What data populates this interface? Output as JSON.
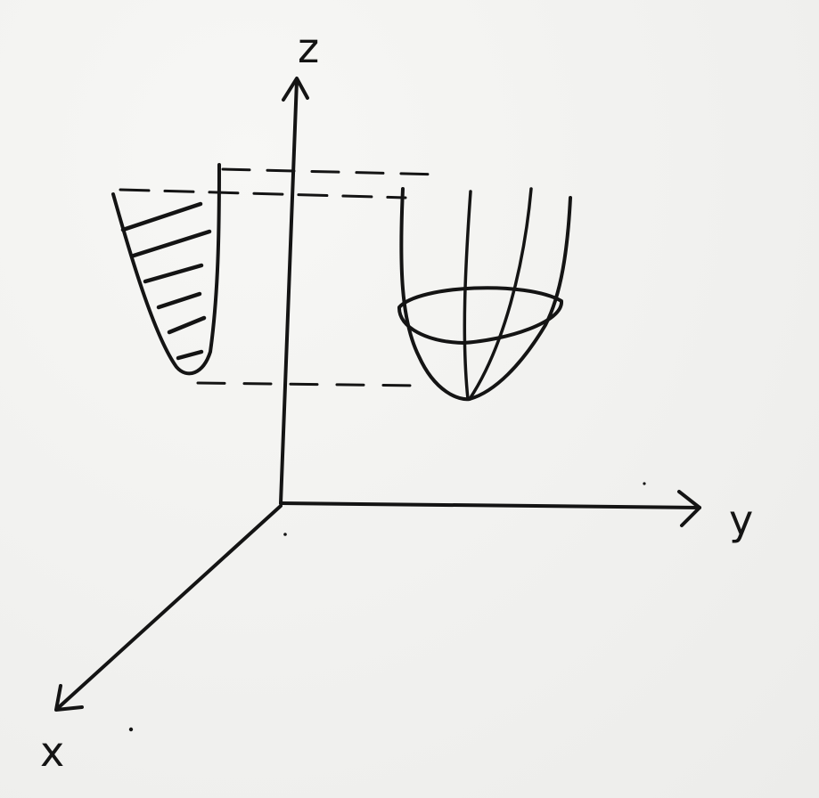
{
  "figure": {
    "type": "hand-drawn 3D sketch",
    "ink_color": "#141414",
    "paper_color": "#f2f2f0",
    "axes": {
      "z_label": "z",
      "y_label": "y",
      "x_label": "x"
    },
    "left_shape": "hatched cross-section of a parabola",
    "right_shape": "paraboloid bowl with elliptical ring"
  }
}
